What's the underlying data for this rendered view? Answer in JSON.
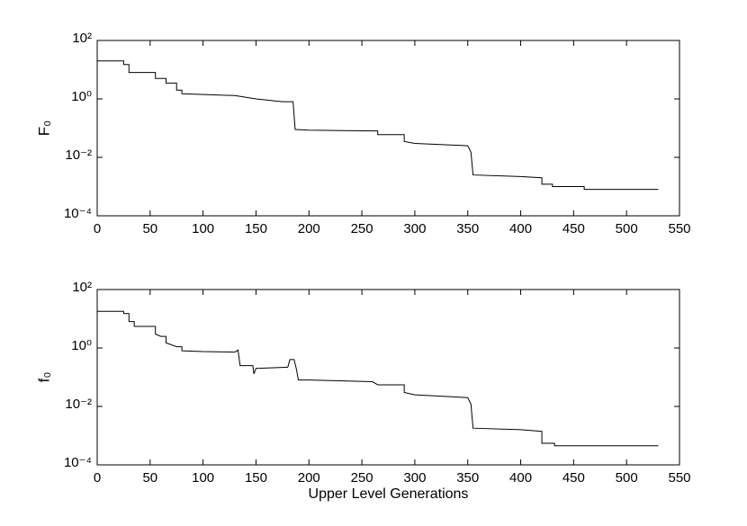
{
  "chart_data": [
    {
      "type": "line",
      "ylabel": "F₀",
      "log_y": true,
      "color": "#000000",
      "x": [
        0,
        25,
        25,
        30,
        30,
        55,
        55,
        65,
        65,
        75,
        75,
        80,
        80,
        130,
        150,
        175,
        185,
        187,
        200,
        265,
        265,
        290,
        290,
        300,
        350,
        353,
        355,
        400,
        420,
        420,
        430,
        430,
        460,
        460,
        530
      ],
      "values": [
        20,
        20,
        15,
        15,
        8,
        8,
        5,
        5,
        3.5,
        3.5,
        2,
        2,
        1.5,
        1.3,
        1,
        0.8,
        0.8,
        0.09,
        0.085,
        0.08,
        0.06,
        0.06,
        0.035,
        0.03,
        0.025,
        0.015,
        0.0025,
        0.0022,
        0.002,
        0.0012,
        0.0012,
        0.001,
        0.001,
        0.0008,
        0.0008
      ],
      "xlim": [
        0,
        550
      ],
      "xticks": [
        0,
        50,
        100,
        150,
        200,
        250,
        300,
        350,
        400,
        450,
        500,
        550
      ],
      "ylim": [
        0.0001,
        100
      ],
      "yticks": [
        {
          "value": 0.0001,
          "label": "10⁻⁴"
        },
        {
          "value": 0.01,
          "label": "10⁻²"
        },
        {
          "value": 1,
          "label": "10⁰"
        },
        {
          "value": 100,
          "label": "10²"
        }
      ]
    },
    {
      "type": "line",
      "ylabel": "f₀",
      "xlabel": "Upper Level Generations",
      "log_y": true,
      "color": "#000000",
      "x": [
        0,
        25,
        25,
        30,
        30,
        35,
        35,
        55,
        55,
        60,
        65,
        65,
        75,
        80,
        80,
        100,
        130,
        133,
        135,
        147,
        148,
        150,
        180,
        182,
        186,
        188,
        190,
        200,
        260,
        265,
        290,
        290,
        300,
        350,
        353,
        355,
        400,
        420,
        420,
        432,
        432,
        530
      ],
      "values": [
        18,
        18,
        15,
        15,
        8,
        8,
        5.5,
        5.5,
        3,
        2.5,
        2.5,
        1.5,
        1.1,
        1.1,
        0.8,
        0.75,
        0.72,
        0.85,
        0.25,
        0.25,
        0.13,
        0.2,
        0.22,
        0.4,
        0.4,
        0.2,
        0.08,
        0.08,
        0.07,
        0.055,
        0.055,
        0.03,
        0.025,
        0.02,
        0.012,
        0.0018,
        0.0016,
        0.0014,
        0.00055,
        0.00055,
        0.00045,
        0.00045
      ],
      "xlim": [
        0,
        550
      ],
      "xticks": [
        0,
        50,
        100,
        150,
        200,
        250,
        300,
        350,
        400,
        450,
        500,
        550
      ],
      "ylim": [
        0.0001,
        100
      ],
      "yticks": [
        {
          "value": 0.0001,
          "label": "10⁻⁴"
        },
        {
          "value": 0.01,
          "label": "10⁻²"
        },
        {
          "value": 1,
          "label": "10⁰"
        },
        {
          "value": 100,
          "label": "10²"
        }
      ]
    }
  ]
}
